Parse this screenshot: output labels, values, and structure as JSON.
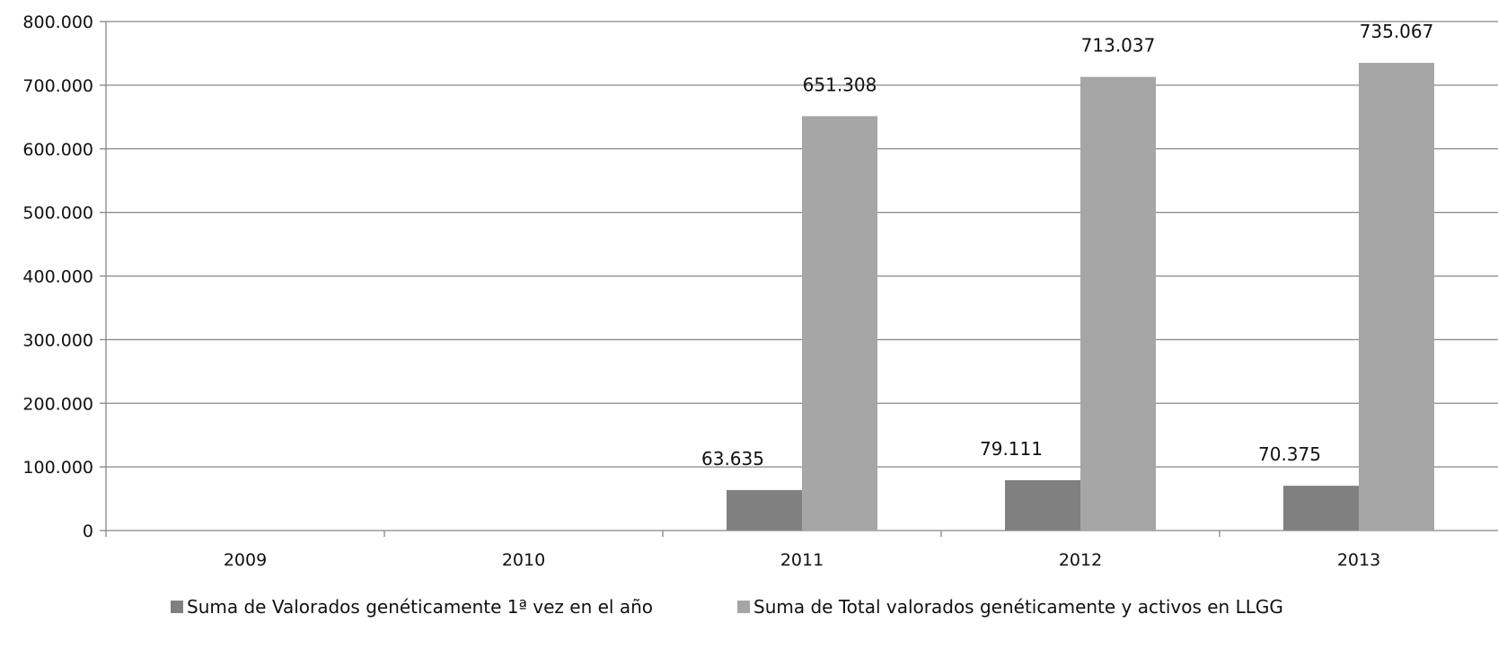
{
  "chart_data": {
    "type": "bar",
    "categories": [
      "2009",
      "2010",
      "2011",
      "2012",
      "2013"
    ],
    "series": [
      {
        "name": "Suma de Valorados genéticamente 1ª vez en el año",
        "color": "#808080",
        "values": [
          null,
          null,
          63635,
          79111,
          70375
        ],
        "labels": [
          "",
          "",
          "63.635",
          "79.111",
          "70.375"
        ]
      },
      {
        "name": "Suma de Total valorados genéticamente y activos en LLGG",
        "color": "#a6a6a6",
        "values": [
          null,
          null,
          651308,
          713037,
          735067
        ],
        "labels": [
          "",
          "",
          "651.308",
          "713.037",
          "735.067"
        ]
      }
    ],
    "ylim": [
      0,
      800000
    ],
    "yticks": [
      0,
      100000,
      200000,
      300000,
      400000,
      500000,
      600000,
      700000,
      800000
    ],
    "ytick_labels": [
      "0",
      "100.000",
      "200.000",
      "300.000",
      "400.000",
      "500.000",
      "600.000",
      "700.000",
      "800.000"
    ],
    "grid": true,
    "legend_position": "bottom"
  }
}
